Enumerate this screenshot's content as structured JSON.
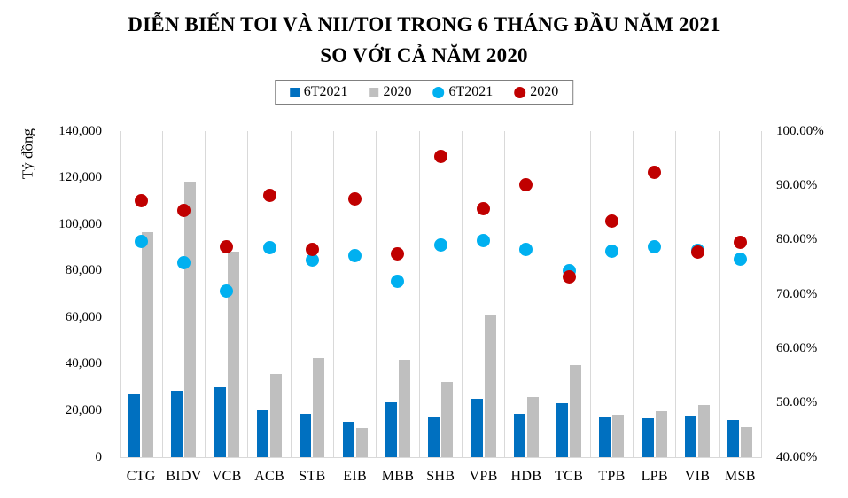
{
  "title": {
    "line1": "DIỄN BIẾN TOI VÀ NII/TOI TRONG 6 THÁNG ĐẦU NĂM 2021",
    "line2": "SO VỚI CẢ NĂM 2020"
  },
  "legend": {
    "items": [
      {
        "label": "6T2021",
        "marker": "square",
        "color": "#0070C0",
        "series": "toi-6t2021"
      },
      {
        "label": "2020",
        "marker": "square",
        "color": "#BFBFBF",
        "series": "toi-2020"
      },
      {
        "label": "6T2021",
        "marker": "circle",
        "color": "#00B0F0",
        "series": "nii-toi-6t2021"
      },
      {
        "label": "2020",
        "marker": "circle",
        "color": "#C00000",
        "series": "nii-toi-2020"
      }
    ]
  },
  "axes": {
    "left_title": "Tỷ đồng",
    "left_ticks": [
      "140,000",
      "120,000",
      "100,000",
      "80,000",
      "60,000",
      "40,000",
      "20,000",
      "0"
    ],
    "right_ticks": [
      "100.00%",
      "90.00%",
      "80.00%",
      "70.00%",
      "60.00%",
      "50.00%",
      "40.00%"
    ]
  },
  "chart_data": {
    "type": "combo-bar-scatter",
    "title": "DIỄN BIẾN TOI VÀ NII/TOI TRONG 6 THÁNG ĐẦU NĂM 2021 SO VỚI CẢ NĂM 2020",
    "xlabel": "",
    "ylabel": "Tỷ đồng",
    "categories": [
      "CTG",
      "BIDV",
      "VCB",
      "ACB",
      "STB",
      "EIB",
      "MBB",
      "SHB",
      "VPB",
      "HDB",
      "TCB",
      "TPB",
      "LPB",
      "VIB",
      "MSB"
    ],
    "axis_left": {
      "min": 0,
      "max": 140000,
      "step": 20000
    },
    "axis_right": {
      "min": 40,
      "max": 100,
      "step": 10,
      "unit": "%"
    },
    "grid": "vertical",
    "legend_position": "top",
    "series": [
      {
        "name": "6T2021",
        "type": "bar",
        "axis": "left",
        "color": "#0070C0",
        "values": [
          27200,
          28600,
          29900,
          20200,
          18600,
          15200,
          23400,
          17000,
          25200,
          18600,
          23100,
          17100,
          16800,
          17700,
          16100
        ]
      },
      {
        "name": "2020",
        "type": "bar",
        "axis": "left",
        "color": "#BFBFBF",
        "values": [
          96800,
          118400,
          88300,
          35800,
          42700,
          12400,
          41800,
          32300,
          61200,
          25700,
          39600,
          18400,
          19700,
          22400,
          12900
        ]
      },
      {
        "name": "6T2021",
        "type": "scatter",
        "axis": "right",
        "color": "#00B0F0",
        "values": [
          79.7,
          75.8,
          70.5,
          78.6,
          76.3,
          77.1,
          72.4,
          79.1,
          79.8,
          78.3,
          74.3,
          77.9,
          78.8,
          78.0,
          76.4
        ]
      },
      {
        "name": "2020",
        "type": "scatter",
        "axis": "right",
        "color": "#C00000",
        "values": [
          87.2,
          85.4,
          78.8,
          88.2,
          78.2,
          87.6,
          77.5,
          95.4,
          85.8,
          90.1,
          73.1,
          83.4,
          92.4,
          77.7,
          79.5
        ]
      }
    ]
  },
  "colors": {
    "bar_blue": "#0070C0",
    "bar_gray": "#BFBFBF",
    "dot_cyan": "#00B0F0",
    "dot_red": "#C00000",
    "gridline": "#D9D9D9",
    "legend_border": "#808080",
    "text": "#000000",
    "background": "#FFFFFF"
  }
}
